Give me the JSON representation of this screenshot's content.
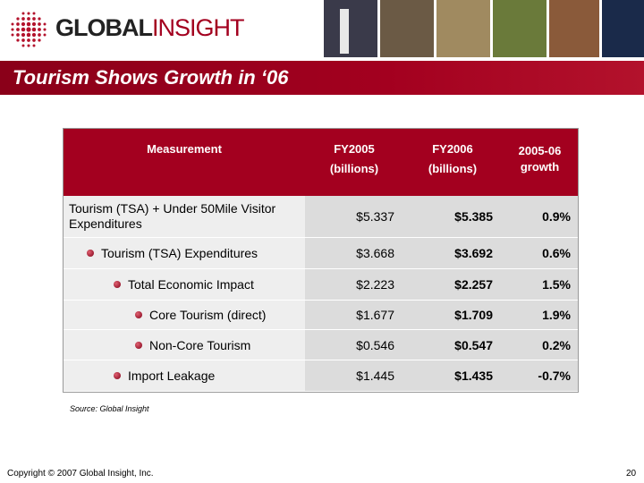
{
  "header": {
    "logo": {
      "bold": "GLOBAL",
      "light": "INSIGHT"
    },
    "title": "Tourism Shows Growth in ‘06"
  },
  "table": {
    "columns": [
      [
        "Measurement"
      ],
      [
        "FY2005",
        "(billions)"
      ],
      [
        "FY2006",
        "(billions)"
      ],
      [
        "2005-06",
        "growth"
      ]
    ],
    "rows": [
      [
        "Tourism (TSA) + Under 50Mile Visitor Expenditures",
        "$5.337",
        "$5.385",
        "0.9%"
      ],
      [
        "Tourism (TSA) Expenditures",
        "$3.668",
        "$3.692",
        "0.6%"
      ],
      [
        "Total Economic Impact",
        "$2.223",
        "$2.257",
        "1.5%"
      ],
      [
        "Core Tourism (direct)",
        "$1.677",
        "$1.709",
        "1.9%"
      ],
      [
        "Non-Core Tourism",
        "$0.546",
        "$0.547",
        "0.2%"
      ],
      [
        "Import Leakage",
        "$1.445",
        "$1.435",
        "-0.7%"
      ]
    ]
  },
  "source": "Source:  Global Insight",
  "footer": {
    "copyright": "Copyright © 2007 Global Insight, Inc.",
    "page": "20"
  }
}
